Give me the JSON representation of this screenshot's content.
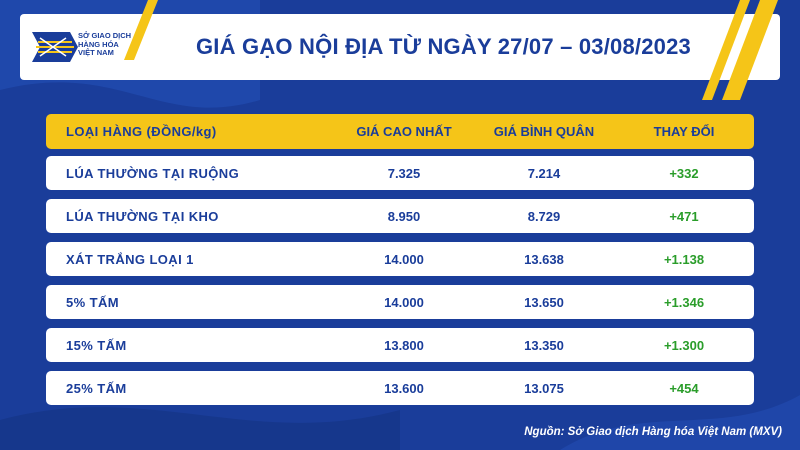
{
  "logo": {
    "line1": "SỞ GIAO DỊCH",
    "line2": "HÀNG HÓA",
    "line3": "VIỆT NAM"
  },
  "title": "GIÁ GẠO NỘI ĐỊA TỪ NGÀY 27/07 – 03/08/2023",
  "colors": {
    "background": "#1a3d9a",
    "accent": "#f5c518",
    "positive": "#2a9d2a"
  },
  "chart_data": {
    "type": "table",
    "title": "GIÁ GẠO NỘI ĐỊA TỪ NGÀY 27/07 – 03/08/2023",
    "columns": [
      "LOẠI HÀNG (ĐỒNG/kg)",
      "GIÁ CAO NHẤT",
      "GIÁ BÌNH QUÂN",
      "THAY ĐỔI"
    ],
    "rows": [
      [
        "LÚA THƯỜNG TẠI RUỘNG",
        "7.325",
        "7.214",
        "+332"
      ],
      [
        "LÚA THƯỜNG TẠI KHO",
        "8.950",
        "8.729",
        "+471"
      ],
      [
        "XÁT TRẮNG LOẠI 1",
        "14.000",
        "13.638",
        "+1.138"
      ],
      [
        "5% TẤM",
        "14.000",
        "13.650",
        "+1.346"
      ],
      [
        "15% TẤM",
        "13.800",
        "13.350",
        "+1.300"
      ],
      [
        "25% TẤM",
        "13.600",
        "13.075",
        "+454"
      ]
    ]
  },
  "source": "Nguồn: Sở Giao dịch Hàng hóa Việt Nam (MXV)"
}
